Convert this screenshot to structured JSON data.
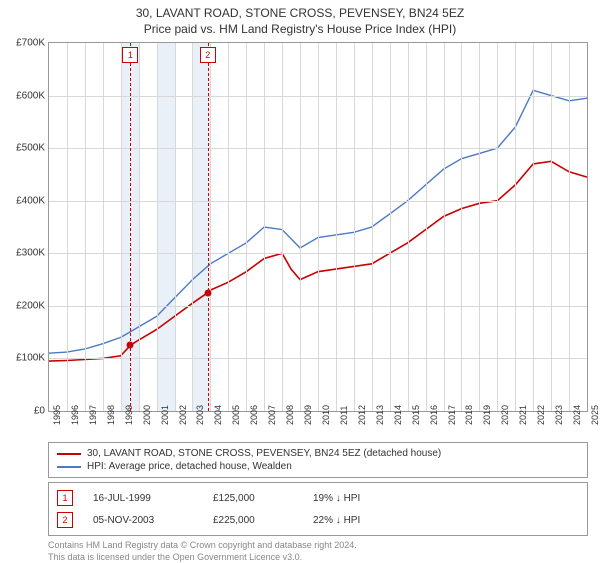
{
  "title_line1": "30, LAVANT ROAD, STONE CROSS, PEVENSEY, BN24 5EZ",
  "title_line2": "Price paid vs. HM Land Registry's House Price Index (HPI)",
  "chart": {
    "type": "line",
    "y_min": 0,
    "y_max": 700000,
    "y_step": 100000,
    "y_tick_labels": [
      "£0",
      "£100K",
      "£200K",
      "£300K",
      "£400K",
      "£500K",
      "£600K",
      "£700K"
    ],
    "x_min": 1995,
    "x_max": 2025,
    "x_tick_labels": [
      "1995",
      "1996",
      "1997",
      "1998",
      "1999",
      "2000",
      "2001",
      "2002",
      "2003",
      "2004",
      "2005",
      "2006",
      "2007",
      "2008",
      "2009",
      "2010",
      "2011",
      "2012",
      "2013",
      "2014",
      "2015",
      "2016",
      "2017",
      "2018",
      "2019",
      "2020",
      "2021",
      "2022",
      "2023",
      "2024",
      "2025"
    ],
    "background_color": "#ffffff",
    "grid_color": "#d8d8d8",
    "border_color": "#999999",
    "alt_bands_color": "#eaf0f8",
    "alt_bands": [
      [
        1999,
        2000
      ],
      [
        2001,
        2002
      ],
      [
        2003,
        2004
      ]
    ],
    "series": [
      {
        "id": "price_paid",
        "color": "#cc0000",
        "line_width": 1.6,
        "points": [
          [
            1995.0,
            95000
          ],
          [
            1996.0,
            96000
          ],
          [
            1997.0,
            98000
          ],
          [
            1998.0,
            100000
          ],
          [
            1999.0,
            105000
          ],
          [
            1999.54,
            125000
          ],
          [
            2000.0,
            135000
          ],
          [
            2001.0,
            155000
          ],
          [
            2002.0,
            180000
          ],
          [
            2003.0,
            205000
          ],
          [
            2003.85,
            225000
          ],
          [
            2004.0,
            230000
          ],
          [
            2005.0,
            245000
          ],
          [
            2006.0,
            265000
          ],
          [
            2007.0,
            290000
          ],
          [
            2008.0,
            300000
          ],
          [
            2008.5,
            270000
          ],
          [
            2009.0,
            250000
          ],
          [
            2010.0,
            265000
          ],
          [
            2011.0,
            270000
          ],
          [
            2012.0,
            275000
          ],
          [
            2013.0,
            280000
          ],
          [
            2014.0,
            300000
          ],
          [
            2015.0,
            320000
          ],
          [
            2016.0,
            345000
          ],
          [
            2017.0,
            370000
          ],
          [
            2018.0,
            385000
          ],
          [
            2019.0,
            395000
          ],
          [
            2020.0,
            400000
          ],
          [
            2021.0,
            430000
          ],
          [
            2022.0,
            470000
          ],
          [
            2023.0,
            475000
          ],
          [
            2024.0,
            455000
          ],
          [
            2025.0,
            445000
          ]
        ]
      },
      {
        "id": "hpi",
        "color": "#4a7bc4",
        "line_width": 1.4,
        "points": [
          [
            1995.0,
            110000
          ],
          [
            1996.0,
            112000
          ],
          [
            1997.0,
            118000
          ],
          [
            1998.0,
            128000
          ],
          [
            1999.0,
            140000
          ],
          [
            2000.0,
            160000
          ],
          [
            2001.0,
            180000
          ],
          [
            2002.0,
            215000
          ],
          [
            2003.0,
            250000
          ],
          [
            2004.0,
            280000
          ],
          [
            2005.0,
            300000
          ],
          [
            2006.0,
            320000
          ],
          [
            2007.0,
            350000
          ],
          [
            2008.0,
            345000
          ],
          [
            2009.0,
            310000
          ],
          [
            2010.0,
            330000
          ],
          [
            2011.0,
            335000
          ],
          [
            2012.0,
            340000
          ],
          [
            2013.0,
            350000
          ],
          [
            2014.0,
            375000
          ],
          [
            2015.0,
            400000
          ],
          [
            2016.0,
            430000
          ],
          [
            2017.0,
            460000
          ],
          [
            2018.0,
            480000
          ],
          [
            2019.0,
            490000
          ],
          [
            2020.0,
            500000
          ],
          [
            2021.0,
            540000
          ],
          [
            2022.0,
            610000
          ],
          [
            2023.0,
            600000
          ],
          [
            2024.0,
            590000
          ],
          [
            2025.0,
            595000
          ]
        ]
      }
    ],
    "event_lines": [
      {
        "num": "1",
        "x": 1999.54,
        "dot_y": 125000,
        "line_color": "#cc0000"
      },
      {
        "num": "2",
        "x": 2003.85,
        "dot_y": 225000,
        "line_color": "#cc0000"
      }
    ]
  },
  "legend": {
    "items": [
      {
        "color": "#cc0000",
        "label": "30, LAVANT ROAD, STONE CROSS, PEVENSEY, BN24 5EZ (detached house)"
      },
      {
        "color": "#4a7bc4",
        "label": "HPI: Average price, detached house, Wealden"
      }
    ]
  },
  "events_table": {
    "rows": [
      {
        "num": "1",
        "date": "16-JUL-1999",
        "price": "£125,000",
        "pct": "19% ↓ HPI"
      },
      {
        "num": "2",
        "date": "05-NOV-2003",
        "price": "£225,000",
        "pct": "22% ↓ HPI"
      }
    ]
  },
  "footer_line1": "Contains HM Land Registry data © Crown copyright and database right 2024.",
  "footer_line2": "This data is licensed under the Open Government Licence v3.0."
}
